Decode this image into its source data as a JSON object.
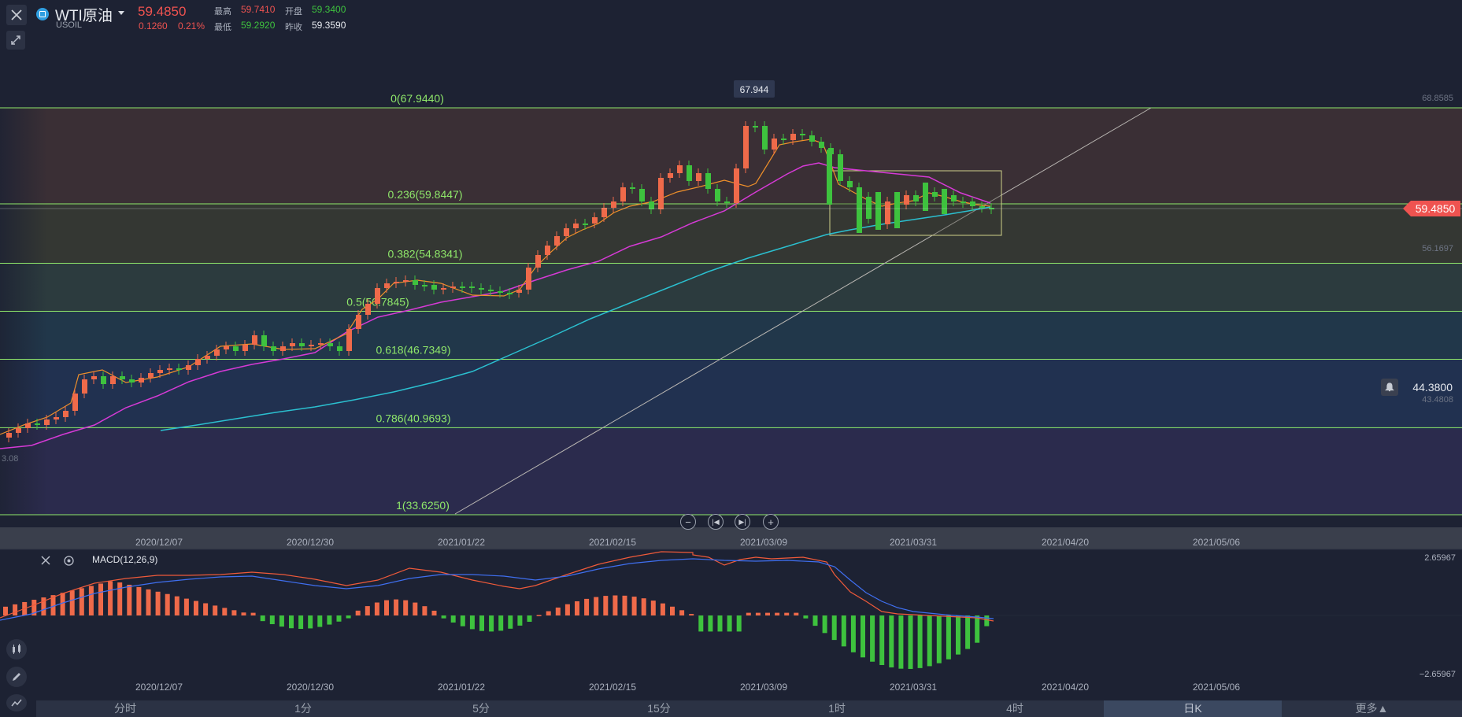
{
  "header": {
    "symbol_name": "WTI原油",
    "symbol_code": "USOIL",
    "last_price": "59.4850",
    "change": "0.1260",
    "change_pct": "0.21%",
    "high_label": "最高",
    "high_value": "59.7410",
    "open_label": "开盘",
    "open_value": "59.3400",
    "low_label": "最低",
    "low_value": "59.2920",
    "prev_close_label": "昨收",
    "prev_close_value": "59.3590"
  },
  "price_chart": {
    "peak_label": "67.944",
    "axis_top_value": "68.8585",
    "axis_value_2": "56.1697",
    "axis_value_3": "43.4808",
    "left_edge_value": "3.08",
    "current_price_tag": "59.4850",
    "alert_price": "44.3800",
    "fib_levels": [
      {
        "label": "0(67.9440)",
        "value": 67.944
      },
      {
        "label": "0.236(59.8447)",
        "value": 59.8447
      },
      {
        "label": "0.382(54.8341)",
        "value": 54.8341
      },
      {
        "label": "0.5(50.7845)",
        "value": 50.7845
      },
      {
        "label": "0.618(46.7349)",
        "value": 46.7349
      },
      {
        "label": "0.786(40.9693)",
        "value": 40.9693
      },
      {
        "label": "1(33.6250)",
        "value": 33.625
      }
    ],
    "x_labels": [
      "2020/12/07",
      "2020/12/30",
      "2021/01/22",
      "2021/02/15",
      "2021/03/09",
      "2021/03/31",
      "2021/04/20",
      "2021/05/06"
    ]
  },
  "macd": {
    "label": "MACD(12,26,9)",
    "axis_top": "2.65967",
    "axis_bottom": "−2.65967",
    "x_labels": [
      "2020/12/07",
      "2020/12/30",
      "2021/01/22",
      "2021/02/15",
      "2021/03/09",
      "2021/03/31",
      "2021/04/20",
      "2021/05/06"
    ]
  },
  "timeframes": [
    "分时",
    "1分",
    "5分",
    "15分",
    "1时",
    "4时",
    "日K",
    "更多▲"
  ],
  "active_timeframe": "日K",
  "colors": {
    "up": "#ef6a4a",
    "down": "#3ec23e",
    "ma_orange": "#f0902a",
    "ma_magenta": "#d63ad6",
    "ma_cyan": "#2bc0d0",
    "fib_line": "#8fe86a",
    "price_tag": "#ef5350"
  },
  "icons": [
    "close-icon",
    "expand-icon",
    "symbol-logo-icon",
    "dropdown-icon",
    "zoom-out-icon",
    "rewind-icon",
    "forward-icon",
    "zoom-in-icon",
    "bell-icon",
    "indicator-icon",
    "pen-icon",
    "line-tool-icon",
    "settings-icon"
  ]
}
